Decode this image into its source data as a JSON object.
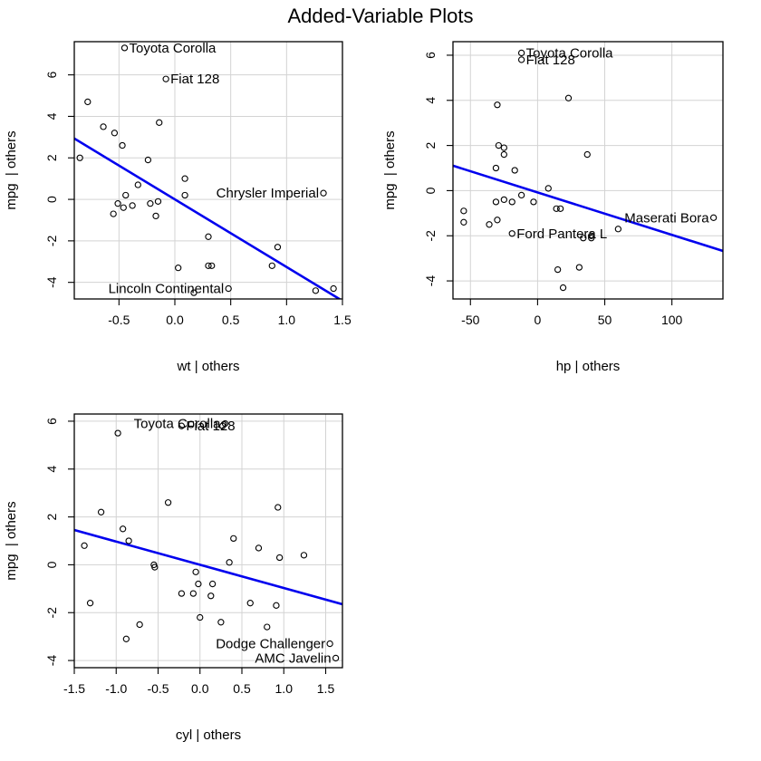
{
  "title": "Added-Variable Plots",
  "colors": {
    "fit_line": "#0000ee",
    "grid": "#d3d3d3",
    "points": "#000000"
  },
  "chart_data": [
    {
      "type": "scatter",
      "xlabel": "wt | others",
      "ylabel": "mpg  | others",
      "xlim": [
        -0.9,
        1.5
      ],
      "ylim": [
        -4.8,
        7.6
      ],
      "xticks": [
        -0.5,
        0.0,
        0.5,
        1.0,
        1.5
      ],
      "xtick_labels": [
        "-0.5",
        "0.0",
        "0.5",
        "1.0",
        "1.5"
      ],
      "yticks": [
        -4,
        -2,
        0,
        2,
        4,
        6
      ],
      "ytick_labels": [
        "-4",
        "-2",
        "0",
        "2",
        "4",
        "6"
      ],
      "grid": true,
      "fit_line": {
        "intercept": 0.0,
        "slope": -3.26
      },
      "points": [
        {
          "x": -0.45,
          "y": 7.3,
          "label": "Toyota Corolla"
        },
        {
          "x": -0.08,
          "y": 5.8,
          "label": "Fiat 128"
        },
        {
          "x": -0.78,
          "y": 4.7
        },
        {
          "x": -0.64,
          "y": 3.5
        },
        {
          "x": -0.54,
          "y": 3.2
        },
        {
          "x": -0.14,
          "y": 3.7
        },
        {
          "x": -0.47,
          "y": 2.6
        },
        {
          "x": -0.85,
          "y": 2.0
        },
        {
          "x": -0.24,
          "y": 1.9
        },
        {
          "x": 0.09,
          "y": 1.0
        },
        {
          "x": -0.33,
          "y": 0.7
        },
        {
          "x": -0.44,
          "y": 0.2
        },
        {
          "x": 0.09,
          "y": 0.2
        },
        {
          "x": 1.33,
          "y": 0.3,
          "label": "Chrysler Imperial"
        },
        {
          "x": -0.51,
          "y": -0.2
        },
        {
          "x": -0.46,
          "y": -0.4
        },
        {
          "x": -0.38,
          "y": -0.3
        },
        {
          "x": -0.22,
          "y": -0.2
        },
        {
          "x": -0.15,
          "y": -0.1
        },
        {
          "x": -0.55,
          "y": -0.7
        },
        {
          "x": -0.17,
          "y": -0.8
        },
        {
          "x": 0.3,
          "y": -1.8
        },
        {
          "x": 0.92,
          "y": -2.3
        },
        {
          "x": 0.03,
          "y": -3.3
        },
        {
          "x": 0.3,
          "y": -3.2
        },
        {
          "x": 0.33,
          "y": -3.2
        },
        {
          "x": 0.87,
          "y": -3.2
        },
        {
          "x": 0.17,
          "y": -4.5
        },
        {
          "x": 0.48,
          "y": -4.3,
          "label": "Lincoln Continental"
        },
        {
          "x": 1.26,
          "y": -4.4
        },
        {
          "x": 1.42,
          "y": -4.3
        }
      ]
    },
    {
      "type": "scatter",
      "xlabel": "hp | others",
      "ylabel": "mpg  | others",
      "xlim": [
        -63,
        138
      ],
      "ylim": [
        -4.8,
        6.6
      ],
      "xticks": [
        -50,
        0,
        50,
        100
      ],
      "xtick_labels": [
        "-50",
        "0",
        "50",
        "100"
      ],
      "yticks": [
        -4,
        -2,
        0,
        2,
        4,
        6
      ],
      "ytick_labels": [
        "-4",
        "-2",
        "0",
        "2",
        "4",
        "6"
      ],
      "grid": true,
      "fit_line": {
        "intercept": -0.08,
        "slope": -0.0188
      },
      "points": [
        {
          "x": -12,
          "y": 6.1,
          "label": "Toyota Corolla"
        },
        {
          "x": -12,
          "y": 5.8,
          "label": "Fiat 128"
        },
        {
          "x": 23,
          "y": 4.1
        },
        {
          "x": -30,
          "y": 3.8
        },
        {
          "x": -29,
          "y": 2.0
        },
        {
          "x": -25,
          "y": 1.9
        },
        {
          "x": -25,
          "y": 1.6
        },
        {
          "x": 37,
          "y": 1.6
        },
        {
          "x": -31,
          "y": 1.0
        },
        {
          "x": -17,
          "y": 0.9
        },
        {
          "x": 8,
          "y": 0.1
        },
        {
          "x": -12,
          "y": -0.2
        },
        {
          "x": -25,
          "y": -0.4
        },
        {
          "x": -31,
          "y": -0.5
        },
        {
          "x": -19,
          "y": -0.5
        },
        {
          "x": -3,
          "y": -0.5
        },
        {
          "x": -55,
          "y": -0.9
        },
        {
          "x": 14,
          "y": -0.8
        },
        {
          "x": 17,
          "y": -0.8
        },
        {
          "x": -55,
          "y": -1.4
        },
        {
          "x": -30,
          "y": -1.3
        },
        {
          "x": -36,
          "y": -1.5
        },
        {
          "x": -19,
          "y": -1.9,
          "label": "Ford Pantera L"
        },
        {
          "x": 60,
          "y": -1.7
        },
        {
          "x": 131,
          "y": -1.2,
          "label": "Maserati Bora"
        },
        {
          "x": 40,
          "y": -2.0
        },
        {
          "x": 34,
          "y": -2.1
        },
        {
          "x": 40,
          "y": -2.1
        },
        {
          "x": 31,
          "y": -3.4
        },
        {
          "x": 15,
          "y": -3.5
        },
        {
          "x": 19,
          "y": -4.3
        }
      ]
    },
    {
      "type": "scatter",
      "xlabel": "cyl | others",
      "ylabel": "mpg  | others",
      "xlim": [
        -1.5,
        1.7
      ],
      "ylim": [
        -4.3,
        6.3
      ],
      "xticks": [
        -1.5,
        -1.0,
        -0.5,
        0.0,
        0.5,
        1.0,
        1.5
      ],
      "xtick_labels": [
        "-1.5",
        "-1.0",
        "-0.5",
        "0.0",
        "0.5",
        "1.0",
        "1.5"
      ],
      "yticks": [
        -4,
        -2,
        0,
        2,
        4,
        6
      ],
      "ytick_labels": [
        "-4",
        "-2",
        "0",
        "2",
        "4",
        "6"
      ],
      "grid": true,
      "fit_line": {
        "intercept": 0.0,
        "slope": -0.97
      },
      "points": [
        {
          "x": -0.22,
          "y": 5.8,
          "label": "Fiat 128"
        },
        {
          "x": 0.3,
          "y": 5.9,
          "label": "Toyota Corolla"
        },
        {
          "x": 0.27,
          "y": 5.8
        },
        {
          "x": -0.98,
          "y": 5.5
        },
        {
          "x": -1.18,
          "y": 2.2
        },
        {
          "x": -0.38,
          "y": 2.6
        },
        {
          "x": 0.93,
          "y": 2.4
        },
        {
          "x": -0.92,
          "y": 1.5
        },
        {
          "x": -0.85,
          "y": 1.0
        },
        {
          "x": 0.4,
          "y": 1.1
        },
        {
          "x": 0.7,
          "y": 0.7
        },
        {
          "x": -1.38,
          "y": 0.8
        },
        {
          "x": 0.95,
          "y": 0.3
        },
        {
          "x": 1.24,
          "y": 0.4
        },
        {
          "x": 0.35,
          "y": 0.1
        },
        {
          "x": -0.55,
          "y": 0.0
        },
        {
          "x": -0.54,
          "y": -0.1
        },
        {
          "x": -0.05,
          "y": -0.3
        },
        {
          "x": -0.02,
          "y": -0.8
        },
        {
          "x": 0.15,
          "y": -0.8
        },
        {
          "x": -0.22,
          "y": -1.2
        },
        {
          "x": -0.08,
          "y": -1.2
        },
        {
          "x": 0.13,
          "y": -1.3
        },
        {
          "x": -1.31,
          "y": -1.6
        },
        {
          "x": 0.6,
          "y": -1.6
        },
        {
          "x": 0.91,
          "y": -1.7
        },
        {
          "x": -0.72,
          "y": -2.5
        },
        {
          "x": 0.0,
          "y": -2.2
        },
        {
          "x": 0.25,
          "y": -2.4
        },
        {
          "x": 0.8,
          "y": -2.6
        },
        {
          "x": -0.88,
          "y": -3.1
        },
        {
          "x": 1.55,
          "y": -3.3,
          "label": "Dodge Challenger"
        },
        {
          "x": 1.62,
          "y": -3.9,
          "label": "AMC Javelin"
        }
      ]
    }
  ]
}
